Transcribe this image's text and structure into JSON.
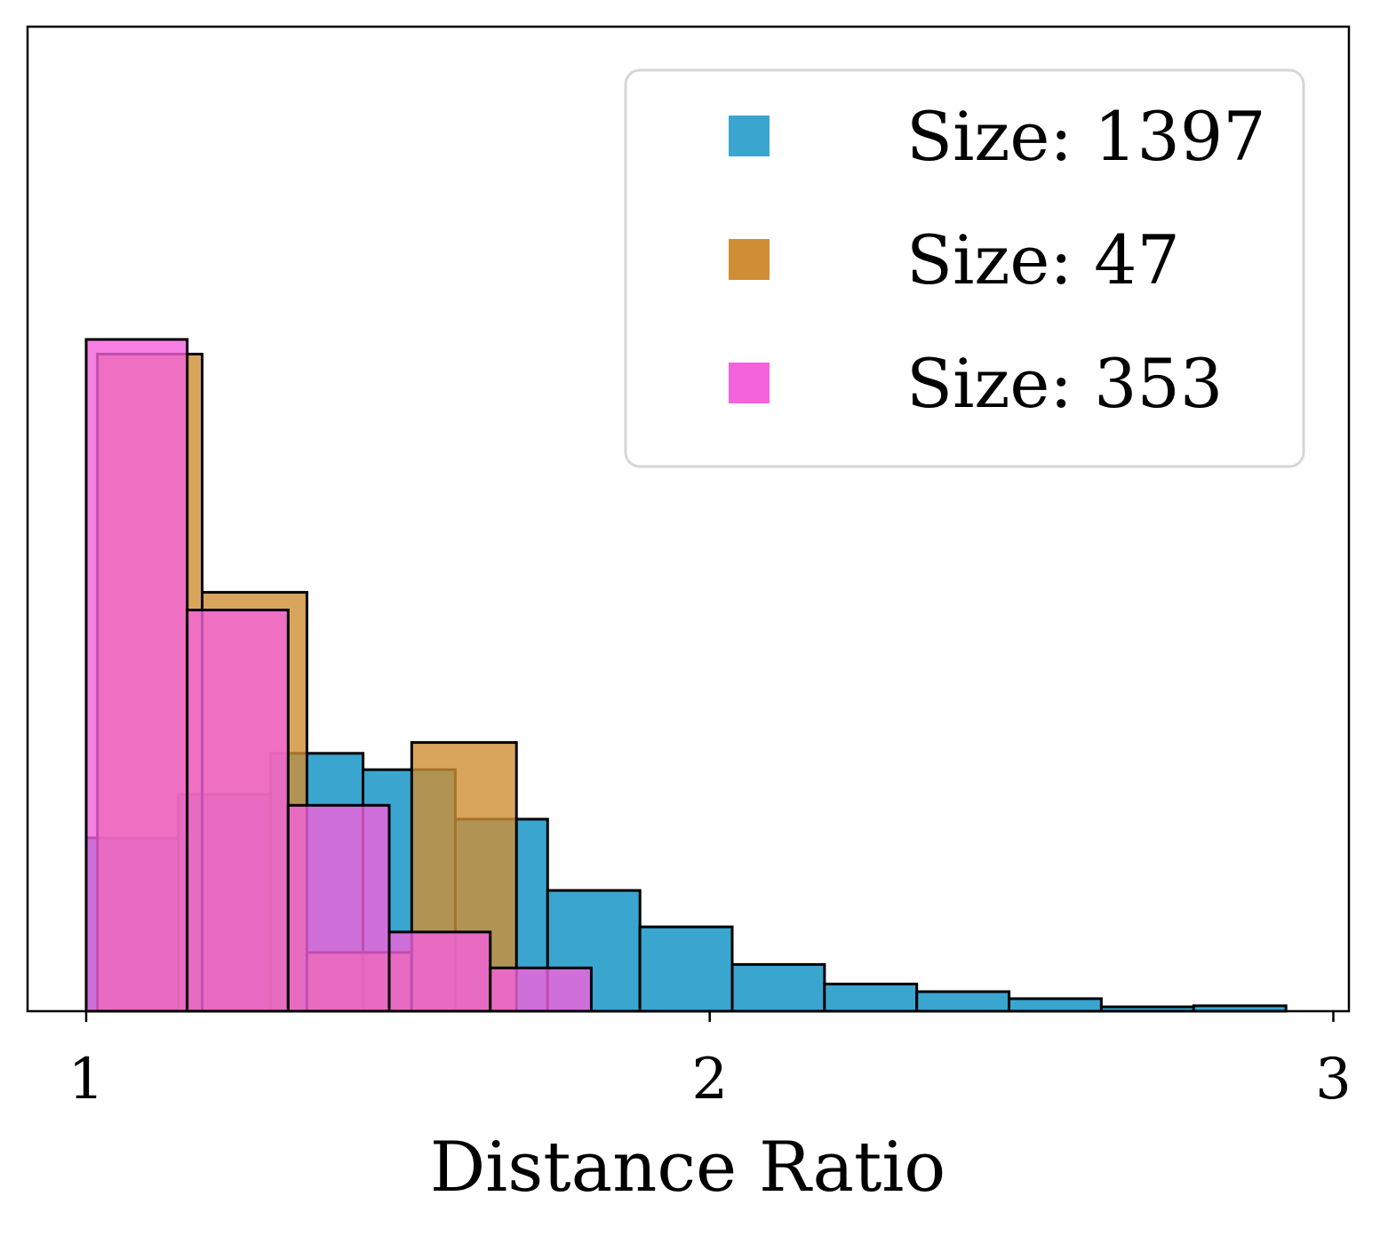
{
  "chart_data": {
    "type": "histogram",
    "title": "",
    "xlabel": "Distance Ratio",
    "ylabel": "",
    "xlim": [
      0.906,
      3.025
    ],
    "ylim": [
      0,
      0.362
    ],
    "x_ticks": [
      1,
      2,
      3
    ],
    "x_tick_labels": [
      "1",
      "2",
      "3"
    ],
    "y_ticks_shown": false,
    "grid": false,
    "legend": {
      "position": "top-right"
    },
    "series": [
      {
        "name": "Size: 1397",
        "color": "#3aa6d0",
        "opacity": 1.0,
        "bins": [
          {
            "x0": 1.0,
            "x1": 1.148,
            "value": 0.0637
          },
          {
            "x0": 1.148,
            "x1": 1.296,
            "value": 0.0797
          },
          {
            "x0": 1.296,
            "x1": 1.444,
            "value": 0.0948
          },
          {
            "x0": 1.444,
            "x1": 1.592,
            "value": 0.0888
          },
          {
            "x0": 1.592,
            "x1": 1.74,
            "value": 0.0706
          },
          {
            "x0": 1.74,
            "x1": 1.888,
            "value": 0.0444
          },
          {
            "x0": 1.888,
            "x1": 2.036,
            "value": 0.031
          },
          {
            "x0": 2.036,
            "x1": 2.184,
            "value": 0.0172
          },
          {
            "x0": 2.184,
            "x1": 2.332,
            "value": 0.01
          },
          {
            "x0": 2.332,
            "x1": 2.48,
            "value": 0.0072
          },
          {
            "x0": 2.48,
            "x1": 2.628,
            "value": 0.0046
          },
          {
            "x0": 2.628,
            "x1": 2.776,
            "value": 0.0016
          },
          {
            "x0": 2.776,
            "x1": 2.924,
            "value": 0.002
          }
        ]
      },
      {
        "name": "Size: 47",
        "color": "#cf8e34",
        "opacity": 0.8,
        "bins": [
          {
            "x0": 1.018,
            "x1": 1.186,
            "value": 0.2416
          },
          {
            "x0": 1.186,
            "x1": 1.354,
            "value": 0.154
          },
          {
            "x0": 1.354,
            "x1": 1.522,
            "value": 0.0216
          },
          {
            "x0": 1.522,
            "x1": 1.69,
            "value": 0.0988
          },
          {
            "x0": 1.69,
            "x1": 1.858,
            "value": 0.0
          }
        ]
      },
      {
        "name": "Size: 353",
        "color": "#f462dc",
        "opacity": 0.8,
        "bins": [
          {
            "x0": 1.0,
            "x1": 1.162,
            "value": 0.247
          },
          {
            "x0": 1.162,
            "x1": 1.324,
            "value": 0.1475
          },
          {
            "x0": 1.324,
            "x1": 1.486,
            "value": 0.0757
          },
          {
            "x0": 1.486,
            "x1": 1.648,
            "value": 0.0291
          },
          {
            "x0": 1.648,
            "x1": 1.81,
            "value": 0.0159
          }
        ]
      }
    ]
  }
}
